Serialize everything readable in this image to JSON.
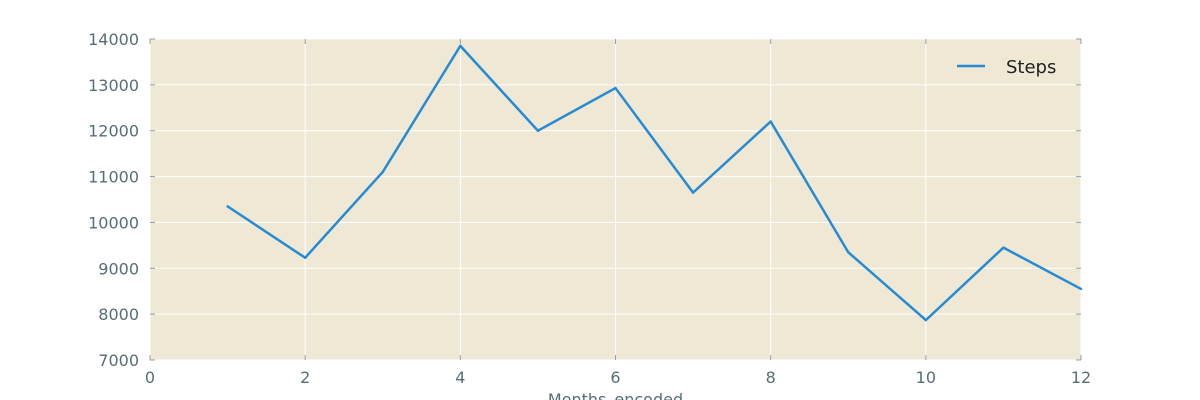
{
  "chart_data": {
    "type": "line",
    "title": "",
    "xlabel": "Months_encoded",
    "ylabel": "",
    "xlim": [
      0,
      12
    ],
    "ylim": [
      7000,
      14000
    ],
    "xticks": [
      0,
      2,
      4,
      6,
      8,
      10,
      12
    ],
    "yticks": [
      7000,
      8000,
      9000,
      10000,
      11000,
      12000,
      13000,
      14000
    ],
    "grid": true,
    "legend_position": "top-right",
    "colors": {
      "plot_background": "#eee8d5",
      "line": "#268bd2",
      "grid": "#ffffff"
    },
    "series": [
      {
        "name": "Steps",
        "x": [
          1,
          2,
          3,
          4,
          5,
          6,
          7,
          8,
          9,
          10,
          11,
          12
        ],
        "y": [
          10350,
          9230,
          11100,
          13850,
          12000,
          12930,
          10650,
          12200,
          9350,
          7870,
          9450,
          8550
        ]
      }
    ]
  }
}
